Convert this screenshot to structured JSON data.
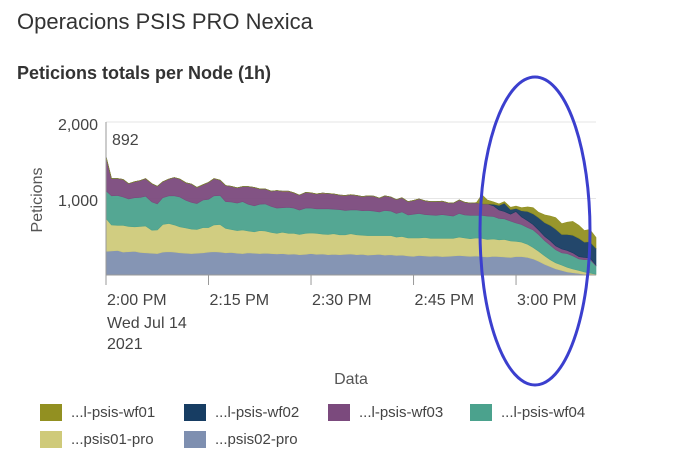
{
  "app": {
    "title": "Operacions PSIS PRO Nexica"
  },
  "chart_data": {
    "type": "area",
    "stacked": true,
    "title": "Peticions totals per Node (1h)",
    "xlabel": "Data",
    "ylabel": "Peticions",
    "ylim": [
      0,
      2000
    ],
    "yticks": [
      "1,000",
      "2,000"
    ],
    "xtick_labels": [
      "2:00 PM",
      "2:15 PM",
      "2:30 PM",
      "2:45 PM",
      "3:00 PM"
    ],
    "xtick_values": [
      0,
      15,
      30,
      45,
      60
    ],
    "date_label": [
      "Wed Jul 14",
      "2021"
    ],
    "hover_value": "892",
    "legend_position": "bottom",
    "annotation": "blue ellipse highlighting the interval after 2:55 PM",
    "x": [
      0,
      0.8,
      1.7,
      2.5,
      3.3,
      4.2,
      5.0,
      5.8,
      6.7,
      7.5,
      8.3,
      9.2,
      10.0,
      10.8,
      11.7,
      12.5,
      13.3,
      14.2,
      15.0,
      15.8,
      16.7,
      17.5,
      18.3,
      19.2,
      20.0,
      20.8,
      21.7,
      22.5,
      23.3,
      24.2,
      25.0,
      25.8,
      26.7,
      27.5,
      28.3,
      29.2,
      30.0,
      30.8,
      31.7,
      32.5,
      33.3,
      34.2,
      35.0,
      35.8,
      36.7,
      37.5,
      38.3,
      39.2,
      40.0,
      40.8,
      41.7,
      42.5,
      43.3,
      44.2,
      45.0,
      45.8,
      46.7,
      47.5,
      48.3,
      49.2,
      50.0,
      50.8,
      51.7,
      52.5,
      53.3,
      54.2,
      55.0,
      55.8,
      56.7,
      57.5,
      58.3,
      59.2,
      60.0,
      60.8,
      61.7,
      62.5,
      63.3,
      64.2,
      65.0,
      65.8,
      66.7,
      67.5,
      68.3,
      69.2,
      70.0,
      70.8,
      71.7
    ],
    "series": [
      {
        "name": "...psis02-pro",
        "color": "#7e8fb0",
        "values": [
          310,
          315,
          320,
          300,
          305,
          310,
          295,
          290,
          285,
          280,
          300,
          305,
          300,
          290,
          285,
          280,
          285,
          290,
          300,
          305,
          300,
          290,
          295,
          285,
          280,
          290,
          285,
          280,
          285,
          280,
          275,
          280,
          270,
          275,
          265,
          270,
          280,
          270,
          275,
          265,
          270,
          265,
          270,
          275,
          265,
          270,
          260,
          265,
          270,
          260,
          265,
          255,
          260,
          250,
          245,
          255,
          250,
          245,
          250,
          240,
          245,
          250,
          255,
          250,
          245,
          250,
          240,
          235,
          245,
          240,
          235,
          230,
          240,
          240,
          230,
          210,
          180,
          140,
          110,
          80,
          60,
          40,
          30,
          20,
          10,
          5,
          0
        ]
      },
      {
        "name": "...psis01-pro",
        "color": "#cfca7a",
        "values": [
          430,
          340,
          330,
          350,
          330,
          320,
          340,
          350,
          300,
          310,
          360,
          370,
          355,
          340,
          330,
          320,
          310,
          330,
          320,
          350,
          360,
          320,
          300,
          295,
          310,
          285,
          280,
          300,
          290,
          275,
          270,
          280,
          275,
          270,
          265,
          275,
          270,
          275,
          260,
          265,
          270,
          260,
          255,
          265,
          260,
          250,
          255,
          250,
          245,
          255,
          250,
          240,
          245,
          235,
          240,
          230,
          240,
          235,
          230,
          240,
          235,
          230,
          240,
          235,
          230,
          235,
          240,
          230,
          225,
          220,
          230,
          215,
          200,
          190,
          170,
          150,
          130,
          110,
          90,
          80,
          70,
          60,
          50,
          40,
          30,
          20,
          10
        ]
      },
      {
        "name": "...l-psis-wf04",
        "color": "#4ba28d",
        "values": [
          360,
          380,
          390,
          370,
          360,
          380,
          380,
          390,
          370,
          340,
          350,
          360,
          380,
          390,
          360,
          350,
          340,
          360,
          370,
          380,
          380,
          350,
          360,
          360,
          370,
          350,
          340,
          345,
          355,
          340,
          330,
          320,
          340,
          330,
          320,
          330,
          325,
          320,
          330,
          335,
          320,
          330,
          320,
          310,
          325,
          320,
          330,
          320,
          310,
          330,
          320,
          310,
          320,
          300,
          310,
          320,
          300,
          305,
          300,
          310,
          300,
          290,
          310,
          300,
          305,
          295,
          300,
          305,
          295,
          280,
          270,
          260,
          240,
          230,
          220,
          230,
          220,
          200,
          190,
          170,
          160,
          180,
          170,
          150,
          160,
          180,
          110
        ]
      },
      {
        "name": "...l-psis-wf03",
        "color": "#7b4a7d",
        "values": [
          450,
          225,
          220,
          230,
          200,
          210,
          220,
          230,
          240,
          230,
          210,
          220,
          240,
          235,
          230,
          240,
          210,
          200,
          220,
          225,
          200,
          210,
          205,
          200,
          195,
          230,
          240,
          200,
          195,
          200,
          230,
          215,
          210,
          200,
          195,
          205,
          200,
          195,
          205,
          200,
          200,
          190,
          195,
          200,
          190,
          185,
          190,
          195,
          180,
          190,
          185,
          180,
          185,
          175,
          180,
          190,
          180,
          175,
          180,
          175,
          165,
          170,
          175,
          165,
          160,
          165,
          150,
          160,
          140,
          110,
          95,
          90,
          150,
          100,
          90,
          70,
          60,
          55,
          60,
          50,
          50,
          40,
          40,
          30,
          30,
          20,
          10
        ]
      },
      {
        "name": "...l-psis-wf02",
        "color": "#173d63",
        "values": [
          0,
          0,
          0,
          0,
          0,
          0,
          0,
          0,
          0,
          0,
          0,
          0,
          0,
          0,
          0,
          0,
          0,
          0,
          0,
          0,
          0,
          0,
          0,
          0,
          0,
          0,
          0,
          0,
          0,
          0,
          0,
          0,
          0,
          0,
          0,
          0,
          0,
          0,
          0,
          0,
          0,
          0,
          0,
          0,
          0,
          0,
          0,
          0,
          0,
          0,
          0,
          0,
          0,
          0,
          0,
          0,
          0,
          0,
          0,
          0,
          0,
          0,
          0,
          0,
          0,
          0,
          0,
          0,
          20,
          60,
          110,
          60,
          40,
          80,
          120,
          140,
          160,
          180,
          200,
          220,
          190,
          210,
          230,
          240,
          200,
          210,
          220
        ]
      },
      {
        "name": "...l-psis-wf01",
        "color": "#929021",
        "values": [
          0,
          0,
          0,
          0,
          0,
          0,
          0,
          0,
          0,
          0,
          0,
          0,
          0,
          0,
          0,
          0,
          0,
          0,
          0,
          0,
          0,
          0,
          0,
          0,
          0,
          0,
          0,
          0,
          0,
          0,
          0,
          0,
          0,
          0,
          0,
          0,
          0,
          0,
          0,
          0,
          0,
          0,
          0,
          0,
          0,
          0,
          0,
          0,
          0,
          0,
          0,
          0,
          0,
          0,
          0,
          0,
          0,
          0,
          0,
          0,
          0,
          0,
          0,
          0,
          0,
          0,
          120,
          50,
          30,
          20,
          20,
          30,
          30,
          40,
          60,
          80,
          70,
          100,
          120,
          150,
          140,
          160,
          180,
          170,
          150,
          160,
          140
        ]
      }
    ]
  },
  "legend": {
    "order": [
      "...l-psis-wf01",
      "...l-psis-wf02",
      "...l-psis-wf03",
      "...l-psis-wf04",
      "...psis01-pro",
      "...psis02-pro"
    ]
  },
  "colors": {
    "ellipse": "#3b3fce",
    "grid": "#e6e6e6",
    "axis": "#999999"
  }
}
